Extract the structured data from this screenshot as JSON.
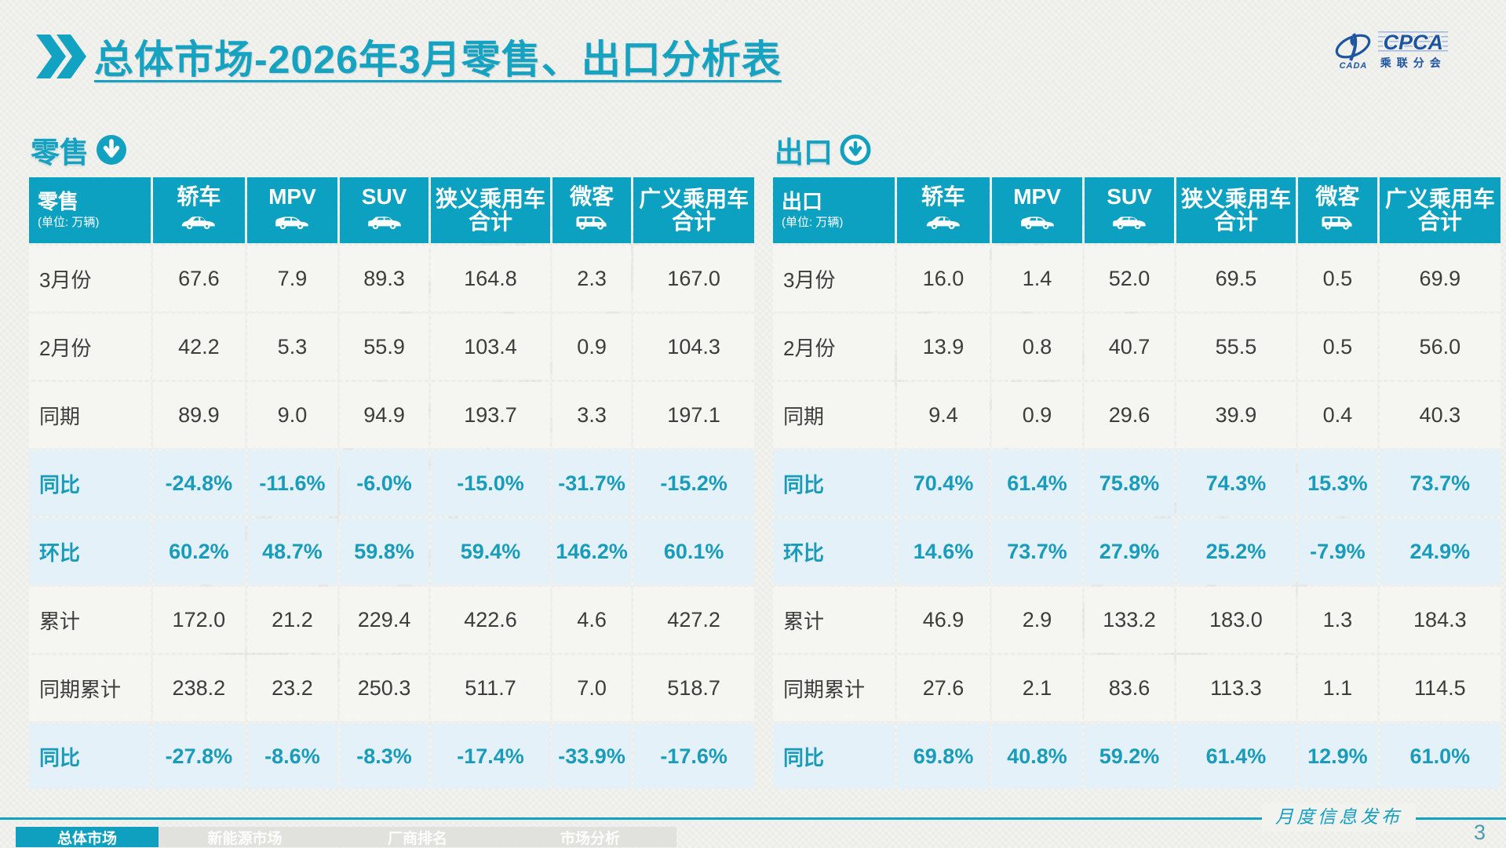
{
  "title": {
    "text": "总体市场-2026年3月零售、出口分析表"
  },
  "logo": {
    "cpca": "CPCA",
    "cada": "CADA",
    "association": "乘联分会"
  },
  "sections": [
    {
      "label": "零售"
    },
    {
      "label": "出口"
    }
  ],
  "tables": [
    {
      "name": "retail",
      "corner": {
        "label": "零售",
        "unit": "(单位: 万辆)"
      },
      "columns": [
        {
          "label": "轿车",
          "icon": "sedan-icon"
        },
        {
          "label": "MPV",
          "icon": "mpv-icon"
        },
        {
          "label": "SUV",
          "icon": "suv-icon"
        },
        {
          "label": "狭义乘用车",
          "line2": "合计"
        },
        {
          "label": "微客",
          "icon": "van-icon"
        },
        {
          "label": "广义乘用车",
          "line2": "合计"
        }
      ],
      "rows": [
        {
          "label": "3月份",
          "type": "normal",
          "values": [
            "67.6",
            "7.9",
            "89.3",
            "164.8",
            "2.3",
            "167.0"
          ]
        },
        {
          "label": "2月份",
          "type": "normal",
          "values": [
            "42.2",
            "5.3",
            "55.9",
            "103.4",
            "0.9",
            "104.3"
          ]
        },
        {
          "label": "同期",
          "type": "normal",
          "values": [
            "89.9",
            "9.0",
            "94.9",
            "193.7",
            "3.3",
            "197.1"
          ]
        },
        {
          "label": "同比",
          "type": "highlight",
          "values": [
            "-24.8%",
            "-11.6%",
            "-6.0%",
            "-15.0%",
            "-31.7%",
            "-15.2%"
          ]
        },
        {
          "label": "环比",
          "type": "highlight",
          "values": [
            "60.2%",
            "48.7%",
            "59.8%",
            "59.4%",
            "146.2%",
            "60.1%"
          ]
        },
        {
          "label": "累计",
          "type": "normal",
          "values": [
            "172.0",
            "21.2",
            "229.4",
            "422.6",
            "4.6",
            "427.2"
          ]
        },
        {
          "label": "同期累计",
          "type": "normal",
          "values": [
            "238.2",
            "23.2",
            "250.3",
            "511.7",
            "7.0",
            "518.7"
          ]
        },
        {
          "label": "同比",
          "type": "highlight",
          "values": [
            "-27.8%",
            "-8.6%",
            "-8.3%",
            "-17.4%",
            "-33.9%",
            "-17.6%"
          ]
        }
      ]
    },
    {
      "name": "export",
      "corner": {
        "label": "出口",
        "unit": "(单位: 万辆)"
      },
      "columns": [
        {
          "label": "轿车",
          "icon": "sedan-icon"
        },
        {
          "label": "MPV",
          "icon": "mpv-icon"
        },
        {
          "label": "SUV",
          "icon": "suv-icon"
        },
        {
          "label": "狭义乘用车",
          "line2": "合计"
        },
        {
          "label": "微客",
          "icon": "van-icon"
        },
        {
          "label": "广义乘用车",
          "line2": "合计"
        }
      ],
      "rows": [
        {
          "label": "3月份",
          "type": "normal",
          "values": [
            "16.0",
            "1.4",
            "52.0",
            "69.5",
            "0.5",
            "69.9"
          ]
        },
        {
          "label": "2月份",
          "type": "normal",
          "values": [
            "13.9",
            "0.8",
            "40.7",
            "55.5",
            "0.5",
            "56.0"
          ]
        },
        {
          "label": "同期",
          "type": "normal",
          "values": [
            "9.4",
            "0.9",
            "29.6",
            "39.9",
            "0.4",
            "40.3"
          ]
        },
        {
          "label": "同比",
          "type": "highlight",
          "values": [
            "70.4%",
            "61.4%",
            "75.8%",
            "74.3%",
            "15.3%",
            "73.7%"
          ]
        },
        {
          "label": "环比",
          "type": "highlight",
          "values": [
            "14.6%",
            "73.7%",
            "27.9%",
            "25.2%",
            "-7.9%",
            "24.9%"
          ]
        },
        {
          "label": "累计",
          "type": "normal",
          "values": [
            "46.9",
            "2.9",
            "133.2",
            "183.0",
            "1.3",
            "184.3"
          ]
        },
        {
          "label": "同期累计",
          "type": "normal",
          "values": [
            "27.6",
            "2.1",
            "83.6",
            "113.3",
            "1.1",
            "114.5"
          ]
        },
        {
          "label": "同比",
          "type": "highlight",
          "values": [
            "69.8%",
            "40.8%",
            "59.2%",
            "61.4%",
            "12.9%",
            "61.0%"
          ]
        }
      ]
    }
  ],
  "footer": {
    "tabs": [
      {
        "label": "总体市场",
        "active": true
      },
      {
        "label": "新能源市场",
        "active": false
      },
      {
        "label": "厂商排名",
        "active": false
      },
      {
        "label": "市场分析",
        "active": false
      }
    ],
    "publication": "月度信息发布",
    "page": "3"
  },
  "colors": {
    "teal": "#12a1c0",
    "highlight_row_bg": "#e5f1f8",
    "highlight_text": "#199cbb",
    "row_bg": "#f5f5f2",
    "logo_blue": "#1d55a0"
  }
}
